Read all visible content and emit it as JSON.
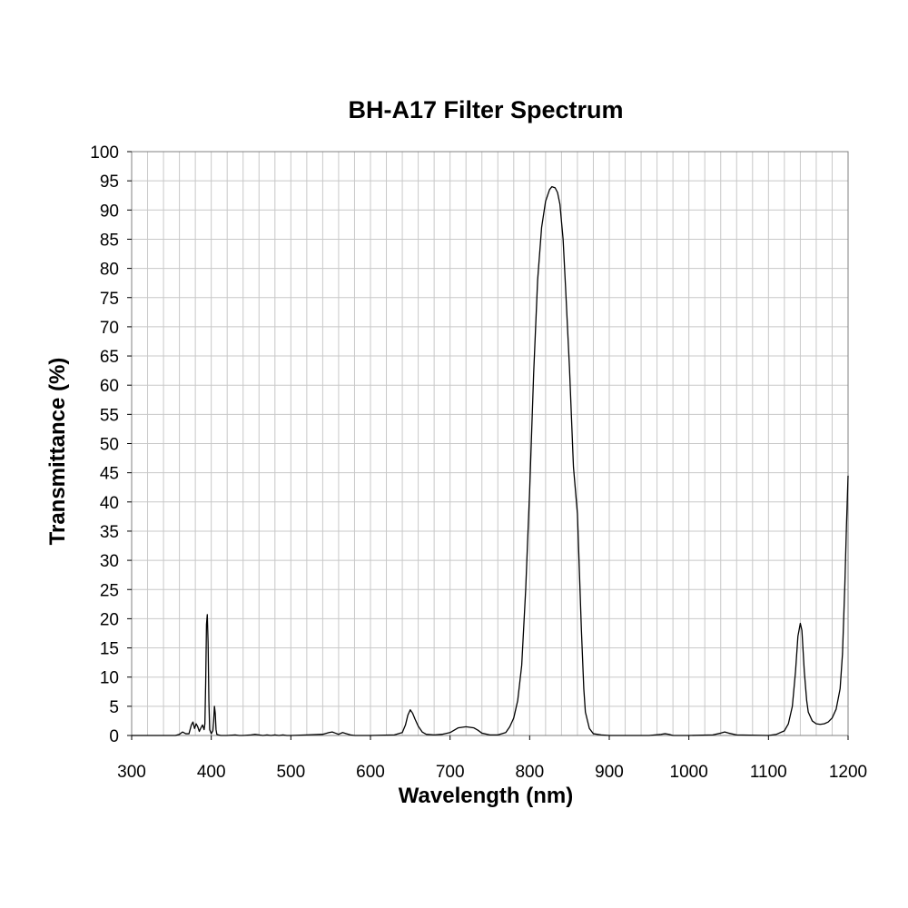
{
  "chart_data": {
    "type": "line",
    "title": "BH-A17 Filter Spectrum",
    "xlabel": "Wavelength (nm)",
    "ylabel": "Transmittance (%)",
    "xlim": [
      300,
      1200
    ],
    "ylim": [
      0,
      100
    ],
    "x_ticks": [
      "300",
      "400",
      "500",
      "600",
      "700",
      "800",
      "900",
      "1000",
      "1100",
      "1200"
    ],
    "y_ticks": [
      "0",
      "5",
      "10",
      "15",
      "20",
      "25",
      "30",
      "35",
      "40",
      "45",
      "50",
      "55",
      "60",
      "65",
      "70",
      "75",
      "80",
      "85",
      "90",
      "95",
      "100"
    ],
    "grid": true,
    "legend": "none",
    "line_color": "#000000",
    "series": [
      {
        "x": [
          300,
          355,
          360,
          364,
          368,
          372,
          375,
          377,
          379,
          381,
          383,
          385,
          387,
          389,
          391,
          392,
          393,
          394,
          395,
          396,
          397,
          398,
          400,
          402,
          403,
          404,
          405,
          406,
          407,
          409,
          412,
          420,
          430,
          435,
          440,
          450,
          455,
          460,
          465,
          470,
          475,
          480,
          485,
          490,
          495,
          500,
          520,
          540,
          548,
          552,
          556,
          560,
          565,
          570,
          575,
          580,
          600,
          630,
          640,
          644,
          647,
          650,
          653,
          656,
          660,
          665,
          670,
          680,
          690,
          700,
          710,
          715,
          720,
          725,
          730,
          735,
          740,
          750,
          760,
          770,
          775,
          780,
          785,
          790,
          795,
          800,
          805,
          810,
          815,
          820,
          825,
          828,
          832,
          835,
          838,
          842,
          845,
          850,
          855,
          860,
          862,
          865,
          868,
          870,
          875,
          880,
          890,
          900,
          950,
          965,
          970,
          975,
          980,
          1000,
          1030,
          1040,
          1045,
          1050,
          1060,
          1100,
          1110,
          1120,
          1125,
          1130,
          1134,
          1137,
          1140,
          1142,
          1145,
          1148,
          1150,
          1155,
          1160,
          1165,
          1170,
          1175,
          1180,
          1185,
          1190,
          1193,
          1196,
          1198,
          1200
        ],
        "y": [
          0,
          0,
          0.2,
          0.6,
          0.3,
          0.3,
          1.8,
          2.3,
          1.2,
          2.0,
          1.5,
          0.7,
          1.3,
          1.8,
          1.0,
          2.0,
          9.0,
          19.0,
          20.7,
          16.0,
          6.0,
          1.0,
          0.3,
          0.8,
          2.5,
          5.0,
          3.8,
          1.0,
          0.2,
          0.1,
          0,
          0,
          0.1,
          0,
          0,
          0.1,
          0.2,
          0.1,
          0,
          0.1,
          0,
          0.1,
          0,
          0.1,
          0,
          0,
          0.1,
          0.2,
          0.5,
          0.6,
          0.4,
          0.2,
          0.5,
          0.3,
          0.1,
          0,
          0,
          0.1,
          0.5,
          1.8,
          3.5,
          4.4,
          3.8,
          2.8,
          1.6,
          0.6,
          0.2,
          0.1,
          0.2,
          0.5,
          1.3,
          1.4,
          1.5,
          1.4,
          1.3,
          0.9,
          0.4,
          0.1,
          0.1,
          0.5,
          1.5,
          3.0,
          6.0,
          12.0,
          25.0,
          42.0,
          62.0,
          78.0,
          87.0,
          91.5,
          93.5,
          94.0,
          93.8,
          93.0,
          91.0,
          85.0,
          77.0,
          63.0,
          46.0,
          38.0,
          30.0,
          18.0,
          8.0,
          4.0,
          1.2,
          0.3,
          0.1,
          0,
          0,
          0.2,
          0.3,
          0.2,
          0,
          0,
          0.1,
          0.4,
          0.6,
          0.4,
          0.1,
          0,
          0.2,
          0.8,
          2.0,
          5.0,
          11.0,
          17.0,
          19.2,
          18.0,
          11.0,
          6.0,
          4.0,
          2.5,
          2.0,
          1.9,
          2.0,
          2.3,
          3.0,
          4.5,
          8.0,
          14.0,
          26.0,
          36.0,
          44.5
        ]
      }
    ]
  }
}
